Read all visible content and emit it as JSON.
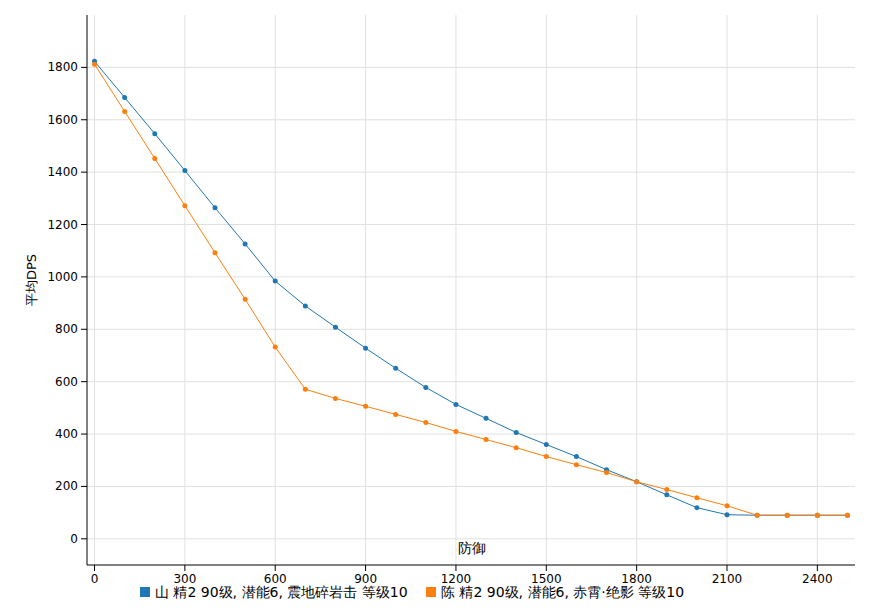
{
  "chart_data": {
    "type": "line",
    "x_label": "防御",
    "y_label": "平均DPS",
    "x": [
      0,
      100,
      200,
      300,
      400,
      500,
      600,
      700,
      800,
      900,
      1000,
      1100,
      1200,
      1300,
      1400,
      1500,
      1600,
      1700,
      1800,
      1900,
      2000,
      2100,
      2200,
      2300,
      2400,
      2500
    ],
    "series": [
      {
        "name": "山 精2 90级, 潜能6, 震地碎岩击 等级10",
        "color": "#1f77b4",
        "marker": "circle",
        "values": [
          1823,
          1685,
          1547,
          1406,
          1264,
          1126,
          984,
          889,
          808,
          728,
          651,
          578,
          513,
          460,
          406,
          360,
          314,
          264,
          218,
          168,
          119,
          92,
          90,
          90,
          90,
          90
        ]
      },
      {
        "name": "陈 精2 90级, 潜能6, 赤霄·绝影 等级10",
        "color": "#ff7f0e",
        "marker": "circle",
        "values": [
          1812,
          1632,
          1452,
          1272,
          1092,
          915,
          732,
          571,
          536,
          506,
          475,
          444,
          410,
          379,
          348,
          314,
          283,
          253,
          218,
          188,
          157,
          126,
          90,
          90,
          90,
          90
        ]
      }
    ],
    "xlim": [
      -25,
      2525
    ],
    "xticks": [
      0,
      300,
      600,
      900,
      1200,
      1500,
      1800,
      2100,
      2400
    ],
    "ylim": [
      -100,
      2000
    ],
    "yticks": [
      0,
      200,
      400,
      600,
      800,
      1000,
      1200,
      1400,
      1600,
      1800
    ],
    "grid": true,
    "legend": "bottom"
  }
}
